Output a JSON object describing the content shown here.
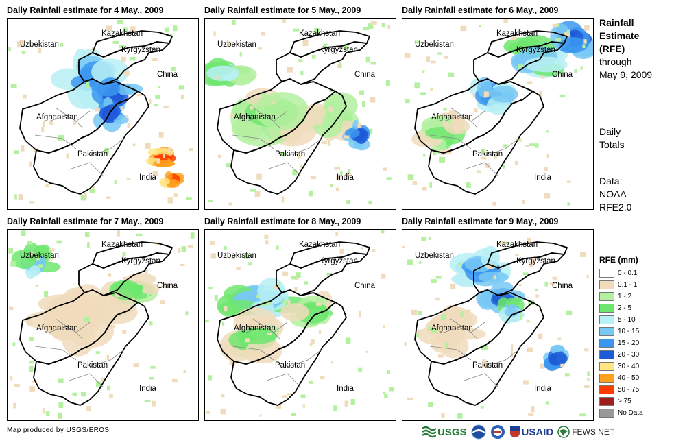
{
  "panels": [
    {
      "title": "Daily Rainfall estimate for 4 May., 2009",
      "labels": [
        "Kazakhstan",
        "Uzbekistan",
        "Kyrgyzstan",
        "China",
        "Afghanistan",
        "Pakistan",
        "India"
      ]
    },
    {
      "title": "Daily Rainfall estimate for 5 May., 2009",
      "labels": [
        "Kazakhstan",
        "Uzbekistan",
        "Kyrgyzstan",
        "China",
        "Afghanistan",
        "Pakistan",
        "India"
      ]
    },
    {
      "title": "Daily Rainfall estimate for 6 May., 2009",
      "labels": [
        "Kazakhstan",
        "Uzbekistan",
        "Kyrgyzstan",
        "China",
        "Afghanistan",
        "Pakistan",
        "India"
      ]
    },
    {
      "title": "Daily Rainfall estimate for 7 May., 2009",
      "labels": [
        "Kazakhstan",
        "Uzbekistan",
        "Kyrgyzstan",
        "China",
        "Afghanistan",
        "Pakistan",
        "India"
      ]
    },
    {
      "title": "Daily Rainfall estimate for 8 May., 2009",
      "labels": [
        "Kazakhstan",
        "Uzbekistan",
        "Kyrgyzstan",
        "China",
        "Afghanistan",
        "Pakistan",
        "India"
      ]
    },
    {
      "title": "Daily Rainfall estimate for 9 May., 2009",
      "labels": [
        "Kazakhstan",
        "Uzbekistan",
        "Kyrgyzstan",
        "China",
        "Afghanistan",
        "Pakistan",
        "India"
      ]
    }
  ],
  "side": {
    "title_lines": [
      "Rainfall",
      "Estimate",
      "(RFE)"
    ],
    "through_lines": [
      "through",
      "May 9, 2009"
    ],
    "daily_lines": [
      "Daily",
      "Totals"
    ],
    "data_lines": [
      "Data:",
      "NOAA-",
      "RFE2.0"
    ]
  },
  "legend": {
    "title": "RFE (mm)",
    "items": [
      {
        "label": "0 - 0.1",
        "color": "#ffffff"
      },
      {
        "label": "0.1 - 1",
        "color": "#f0dcbc"
      },
      {
        "label": "1 - 2",
        "color": "#b4f0a0"
      },
      {
        "label": "2 - 5",
        "color": "#6ee66e"
      },
      {
        "label": "5 - 10",
        "color": "#b9f0f5"
      },
      {
        "label": "10 - 15",
        "color": "#78c8f5"
      },
      {
        "label": "15 - 20",
        "color": "#3c96f0"
      },
      {
        "label": "20 - 30",
        "color": "#1e5ad7"
      },
      {
        "label": "30 - 40",
        "color": "#ffe682"
      },
      {
        "label": "40 - 50",
        "color": "#ffa01e"
      },
      {
        "label": "50 - 75",
        "color": "#ff3c00"
      },
      {
        "label": "> 75",
        "color": "#a01e1e"
      },
      {
        "label": "No Data",
        "color": "#999999"
      }
    ]
  },
  "credit": "Map produced by USGS/EROS",
  "logos": {
    "usgs": "USGS",
    "usaid": "USAID",
    "fewsnet": "FEWS NET"
  }
}
